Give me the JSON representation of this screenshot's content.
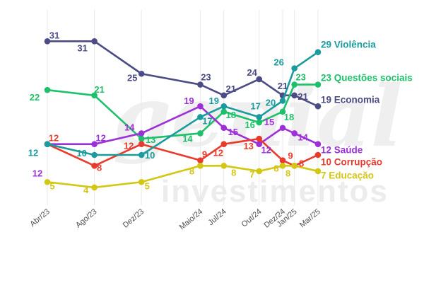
{
  "watermark": {
    "script": "genial",
    "text": "investimentos"
  },
  "chart_data": {
    "type": "line",
    "title": "",
    "xlabel": "",
    "ylabel": "",
    "grid": "vertical-light",
    "legend_position": "line-end-right",
    "categories": [
      "Abr/23",
      "Ago/23",
      "Dez/23",
      "Maio/24",
      "Jul/24",
      "Out/24",
      "Dez/24",
      "Jan/25",
      "Mar/25"
    ],
    "ylim": [
      0,
      35
    ],
    "series": [
      {
        "name": "Violência",
        "color": "#1a9b9d",
        "values": [
          12,
          10,
          10,
          17,
          19,
          17,
          20,
          26,
          29
        ],
        "end_label": "29 Violência"
      },
      {
        "name": "Questões sociais",
        "color": "#1ec06a",
        "values": [
          22,
          21,
          13,
          14,
          18,
          16,
          18,
          23,
          23
        ],
        "end_label": "23 Questões sociais"
      },
      {
        "name": "Economia",
        "color": "#4b4b85",
        "values": [
          31,
          31,
          25,
          23,
          21,
          24,
          21,
          21,
          19
        ],
        "end_label": "19 Economia"
      },
      {
        "name": "Saúde",
        "color": "#9d30d8",
        "values": [
          12,
          12,
          14,
          19,
          15,
          12,
          15,
          14,
          12
        ],
        "end_label": "12 Saúde"
      },
      {
        "name": "Corrupção",
        "color": "#e83b2d",
        "values": [
          12,
          8,
          12,
          9,
          12,
          13,
          9,
          8,
          10
        ],
        "end_label": "10 Corrupção"
      },
      {
        "name": "Educação",
        "color": "#d3c713",
        "values": [
          5,
          4,
          5,
          8,
          8,
          7,
          8,
          8,
          7
        ],
        "end_label": "7 Educação"
      }
    ]
  }
}
